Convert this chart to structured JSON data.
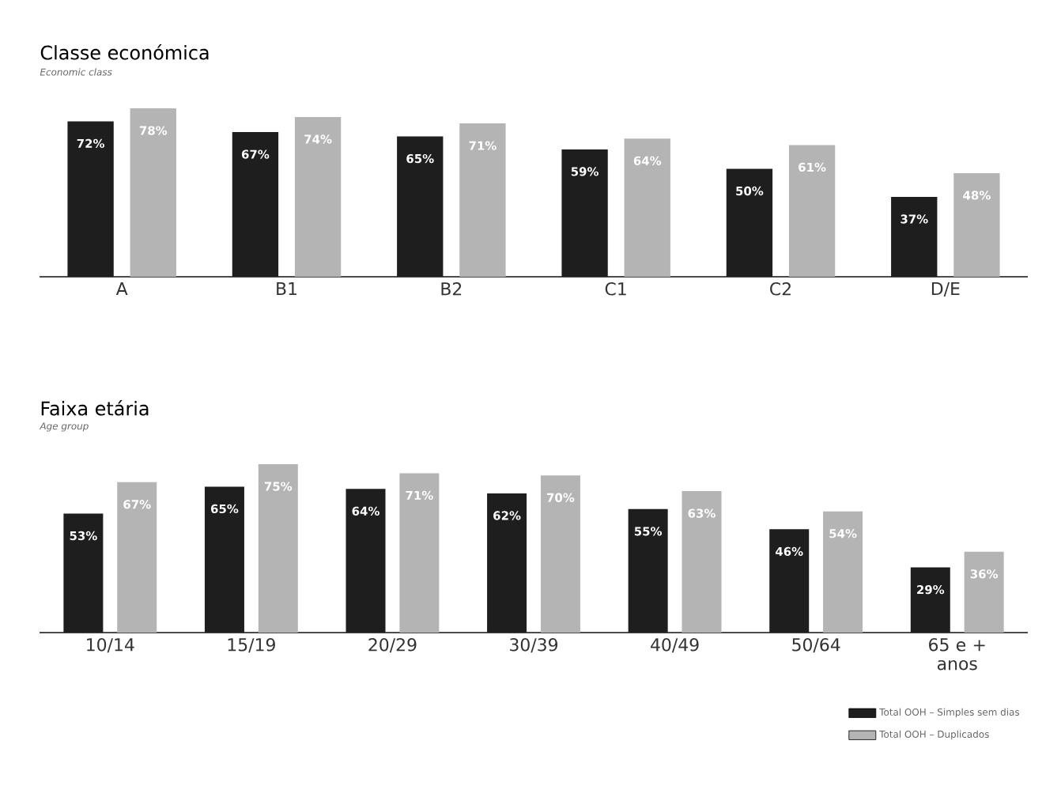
{
  "chart_data": [
    {
      "type": "bar",
      "title": "Classe económica",
      "subtitle": "Economic class",
      "categories": [
        "A",
        "B1",
        "B2",
        "C1",
        "C2",
        "D/E"
      ],
      "series": [
        {
          "color": "#1e1e1e",
          "values": [
            72,
            67,
            65,
            59,
            50,
            37
          ],
          "value_labels": [
            "72%",
            "67%",
            "65%",
            "59%",
            "50%",
            "37%"
          ]
        },
        {
          "color": "#b4b4b4",
          "values": [
            78,
            74,
            71,
            64,
            61,
            48
          ],
          "value_labels": [
            "78%",
            "74%",
            "71%",
            "64%",
            "61%",
            "48%"
          ]
        }
      ],
      "legend": false
    },
    {
      "type": "bar",
      "title": "Faixa etária",
      "subtitle": "Age group",
      "categories": [
        "10/14",
        "15/19",
        "20/29",
        "30/39",
        "40/49",
        "50/64",
        "65 e + anos"
      ],
      "series": [
        {
          "name": "Total OOH – Simples sem dias",
          "color": "#1e1e1e",
          "values": [
            53,
            65,
            64,
            62,
            55,
            46,
            29
          ],
          "value_labels": [
            "53%",
            "65%",
            "64%",
            "62%",
            "55%",
            "46%",
            "29%"
          ]
        },
        {
          "name": "Total OOH – Duplicados",
          "color": "#b4b4b4",
          "values": [
            67,
            75,
            71,
            70,
            63,
            54,
            36
          ],
          "value_labels": [
            "67%",
            "75%",
            "71%",
            "70%",
            "63%",
            "54%",
            "36%"
          ]
        }
      ],
      "legend": "bottom right"
    }
  ]
}
